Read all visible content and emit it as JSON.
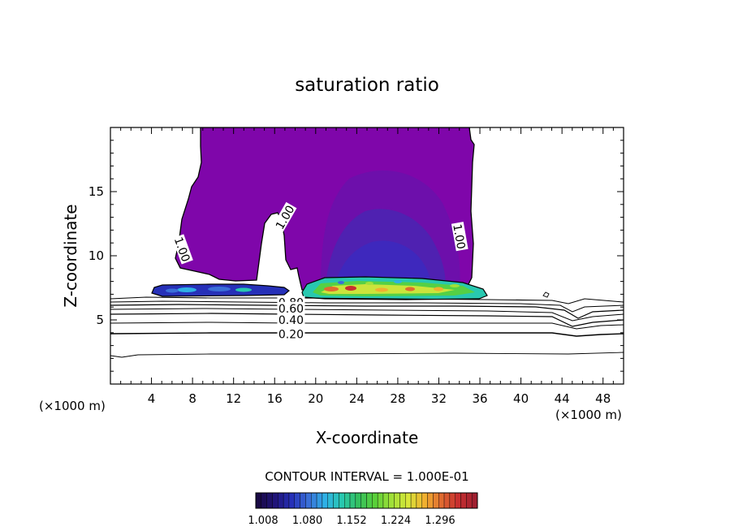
{
  "chart_data": {
    "type": "contour",
    "title": "saturation ratio",
    "xlabel": "X-coordinate",
    "ylabel": "Z-coordinate",
    "x_unit": "(×1000 m)",
    "z_unit": "(×1000 m)",
    "xlim": [
      0,
      50
    ],
    "ylim": [
      0,
      20
    ],
    "x_ticks": [
      4,
      8,
      12,
      16,
      20,
      24,
      28,
      32,
      36,
      40,
      44,
      48
    ],
    "y_ticks": [
      5,
      10,
      15
    ],
    "contour_interval_text": "CONTOUR INTERVAL = 1.000E-01",
    "contour_labels": [
      {
        "text": "1.00",
        "x": 17.0,
        "z": 13.0,
        "rotate": -60
      },
      {
        "text": "1.00",
        "x": 7.0,
        "z": 10.5,
        "rotate": 70
      },
      {
        "text": "1.00",
        "x": 34.0,
        "z": 11.5,
        "rotate": 80
      },
      {
        "text": "0.80",
        "x": 17.6,
        "z": 6.35,
        "rotate": 0
      },
      {
        "text": "0.60",
        "x": 17.6,
        "z": 5.9,
        "rotate": 0
      },
      {
        "text": "0.40",
        "x": 17.6,
        "z": 5.0,
        "rotate": 0
      },
      {
        "text": "0.20",
        "x": 17.6,
        "z": 3.9,
        "rotate": 0
      }
    ],
    "subsaturated_contours": [
      {
        "level": 0.2,
        "z": 3.9
      },
      {
        "level": 0.4,
        "z": 5.0
      },
      {
        "level": 0.6,
        "z": 5.6
      },
      {
        "level": 0.8,
        "z": 6.1
      }
    ],
    "colorbar": {
      "ticks": [
        "1.008",
        "1.080",
        "1.152",
        "1.224",
        "1.296"
      ],
      "colors": [
        "#1a0a45",
        "#20147a",
        "#2630b8",
        "#3a6fd8",
        "#2fb0e6",
        "#28c8b0",
        "#34c060",
        "#5ad03a",
        "#a0e038",
        "#d8e63a",
        "#f0b030",
        "#e06a30",
        "#c83030",
        "#a02030"
      ]
    },
    "colors": {
      "cloud": "#7f06aa",
      "cloud_inner": "#5a1fae",
      "cloud_core": "#3a2ac0"
    }
  }
}
